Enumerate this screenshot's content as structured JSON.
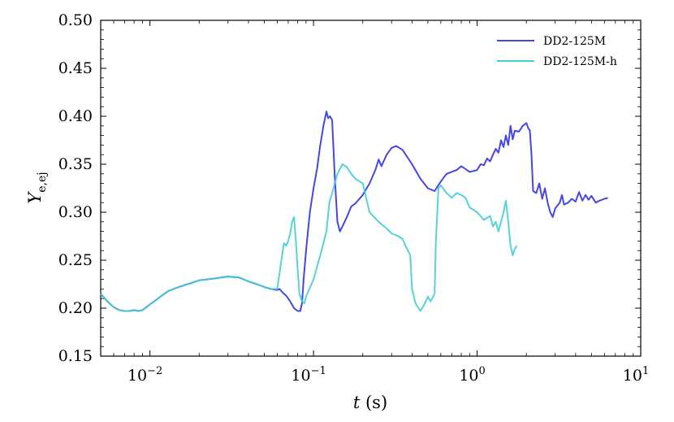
{
  "chart_data": {
    "type": "line",
    "xlabel": "t (s)",
    "ylabel": "Y_e,ej",
    "xscale": "log",
    "xlim": [
      0.005,
      10
    ],
    "ylim": [
      0.15,
      0.5
    ],
    "x_ticks": [
      {
        "value": 0.01,
        "base": "10",
        "exp": "−2"
      },
      {
        "value": 0.1,
        "base": "10",
        "exp": "−1"
      },
      {
        "value": 1,
        "base": "10",
        "exp": "0"
      },
      {
        "value": 10,
        "base": "10",
        "exp": "1"
      }
    ],
    "y_ticks": [
      "0.15",
      "0.20",
      "0.25",
      "0.30",
      "0.35",
      "0.40",
      "0.45",
      "0.50"
    ],
    "grid": false,
    "legend_position": "top-right",
    "series": [
      {
        "name": "DD2-125M",
        "color": "#4646e6",
        "points": [
          [
            0.005,
            0.215
          ],
          [
            0.0055,
            0.207
          ],
          [
            0.006,
            0.201
          ],
          [
            0.0065,
            0.198
          ],
          [
            0.007,
            0.197
          ],
          [
            0.0075,
            0.197
          ],
          [
            0.008,
            0.198
          ],
          [
            0.0085,
            0.197
          ],
          [
            0.009,
            0.198
          ],
          [
            0.0095,
            0.201
          ],
          [
            0.01,
            0.204
          ],
          [
            0.011,
            0.209
          ],
          [
            0.012,
            0.214
          ],
          [
            0.013,
            0.218
          ],
          [
            0.015,
            0.222
          ],
          [
            0.017,
            0.225
          ],
          [
            0.02,
            0.229
          ],
          [
            0.025,
            0.231
          ],
          [
            0.03,
            0.233
          ],
          [
            0.035,
            0.232
          ],
          [
            0.04,
            0.228
          ],
          [
            0.045,
            0.225
          ],
          [
            0.05,
            0.222
          ],
          [
            0.055,
            0.22
          ],
          [
            0.06,
            0.219
          ],
          [
            0.062,
            0.22
          ],
          [
            0.065,
            0.216
          ],
          [
            0.068,
            0.213
          ],
          [
            0.072,
            0.207
          ],
          [
            0.076,
            0.2
          ],
          [
            0.08,
            0.197
          ],
          [
            0.083,
            0.197
          ],
          [
            0.085,
            0.205
          ],
          [
            0.087,
            0.23
          ],
          [
            0.09,
            0.26
          ],
          [
            0.095,
            0.3
          ],
          [
            0.1,
            0.325
          ],
          [
            0.105,
            0.345
          ],
          [
            0.11,
            0.37
          ],
          [
            0.115,
            0.39
          ],
          [
            0.12,
            0.405
          ],
          [
            0.123,
            0.398
          ],
          [
            0.126,
            0.4
          ],
          [
            0.13,
            0.396
          ],
          [
            0.135,
            0.335
          ],
          [
            0.14,
            0.29
          ],
          [
            0.145,
            0.28
          ],
          [
            0.15,
            0.285
          ],
          [
            0.16,
            0.295
          ],
          [
            0.17,
            0.306
          ],
          [
            0.18,
            0.309
          ],
          [
            0.2,
            0.318
          ],
          [
            0.22,
            0.33
          ],
          [
            0.24,
            0.345
          ],
          [
            0.25,
            0.355
          ],
          [
            0.26,
            0.348
          ],
          [
            0.28,
            0.36
          ],
          [
            0.3,
            0.367
          ],
          [
            0.32,
            0.369
          ],
          [
            0.35,
            0.365
          ],
          [
            0.4,
            0.35
          ],
          [
            0.45,
            0.335
          ],
          [
            0.5,
            0.325
          ],
          [
            0.55,
            0.322
          ],
          [
            0.6,
            0.332
          ],
          [
            0.65,
            0.34
          ],
          [
            0.7,
            0.342
          ],
          [
            0.75,
            0.344
          ],
          [
            0.8,
            0.348
          ],
          [
            0.85,
            0.345
          ],
          [
            0.9,
            0.342
          ],
          [
            0.95,
            0.343
          ],
          [
            1.0,
            0.344
          ],
          [
            1.05,
            0.35
          ],
          [
            1.1,
            0.349
          ],
          [
            1.15,
            0.356
          ],
          [
            1.2,
            0.353
          ],
          [
            1.25,
            0.36
          ],
          [
            1.3,
            0.366
          ],
          [
            1.35,
            0.362
          ],
          [
            1.4,
            0.375
          ],
          [
            1.45,
            0.368
          ],
          [
            1.5,
            0.38
          ],
          [
            1.55,
            0.37
          ],
          [
            1.6,
            0.39
          ],
          [
            1.65,
            0.376
          ],
          [
            1.7,
            0.385
          ],
          [
            1.8,
            0.384
          ],
          [
            1.9,
            0.39
          ],
          [
            2.0,
            0.393
          ],
          [
            2.05,
            0.388
          ],
          [
            2.1,
            0.385
          ],
          [
            2.15,
            0.36
          ],
          [
            2.2,
            0.322
          ],
          [
            2.3,
            0.32
          ],
          [
            2.4,
            0.33
          ],
          [
            2.5,
            0.314
          ],
          [
            2.6,
            0.325
          ],
          [
            2.7,
            0.31
          ],
          [
            2.8,
            0.3
          ],
          [
            2.9,
            0.295
          ],
          [
            3.0,
            0.304
          ],
          [
            3.2,
            0.31
          ],
          [
            3.3,
            0.318
          ],
          [
            3.4,
            0.308
          ],
          [
            3.6,
            0.31
          ],
          [
            3.8,
            0.314
          ],
          [
            4.0,
            0.311
          ],
          [
            4.2,
            0.321
          ],
          [
            4.4,
            0.312
          ],
          [
            4.6,
            0.318
          ],
          [
            4.8,
            0.313
          ],
          [
            5.0,
            0.317
          ],
          [
            5.3,
            0.31
          ],
          [
            5.6,
            0.312
          ],
          [
            6.0,
            0.314
          ],
          [
            6.3,
            0.315
          ]
        ]
      },
      {
        "name": "DD2-125M-h",
        "color": "#45cdd0",
        "points": [
          [
            0.005,
            0.215
          ],
          [
            0.0055,
            0.207
          ],
          [
            0.006,
            0.201
          ],
          [
            0.0065,
            0.198
          ],
          [
            0.007,
            0.197
          ],
          [
            0.0075,
            0.197
          ],
          [
            0.008,
            0.198
          ],
          [
            0.0085,
            0.197
          ],
          [
            0.009,
            0.198
          ],
          [
            0.0095,
            0.201
          ],
          [
            0.01,
            0.204
          ],
          [
            0.011,
            0.209
          ],
          [
            0.012,
            0.214
          ],
          [
            0.013,
            0.218
          ],
          [
            0.015,
            0.222
          ],
          [
            0.017,
            0.225
          ],
          [
            0.02,
            0.229
          ],
          [
            0.025,
            0.231
          ],
          [
            0.03,
            0.233
          ],
          [
            0.035,
            0.232
          ],
          [
            0.04,
            0.228
          ],
          [
            0.045,
            0.225
          ],
          [
            0.05,
            0.222
          ],
          [
            0.055,
            0.22
          ],
          [
            0.06,
            0.22
          ],
          [
            0.063,
            0.245
          ],
          [
            0.066,
            0.268
          ],
          [
            0.068,
            0.265
          ],
          [
            0.07,
            0.27
          ],
          [
            0.072,
            0.278
          ],
          [
            0.074,
            0.29
          ],
          [
            0.076,
            0.295
          ],
          [
            0.078,
            0.27
          ],
          [
            0.08,
            0.24
          ],
          [
            0.082,
            0.215
          ],
          [
            0.085,
            0.207
          ],
          [
            0.088,
            0.205
          ],
          [
            0.09,
            0.212
          ],
          [
            0.1,
            0.23
          ],
          [
            0.11,
            0.255
          ],
          [
            0.12,
            0.28
          ],
          [
            0.125,
            0.31
          ],
          [
            0.13,
            0.32
          ],
          [
            0.14,
            0.34
          ],
          [
            0.15,
            0.35
          ],
          [
            0.16,
            0.347
          ],
          [
            0.17,
            0.34
          ],
          [
            0.18,
            0.335
          ],
          [
            0.2,
            0.33
          ],
          [
            0.22,
            0.3
          ],
          [
            0.25,
            0.29
          ],
          [
            0.28,
            0.283
          ],
          [
            0.3,
            0.278
          ],
          [
            0.33,
            0.275
          ],
          [
            0.35,
            0.272
          ],
          [
            0.37,
            0.263
          ],
          [
            0.39,
            0.255
          ],
          [
            0.4,
            0.22
          ],
          [
            0.42,
            0.205
          ],
          [
            0.45,
            0.197
          ],
          [
            0.48,
            0.205
          ],
          [
            0.5,
            0.212
          ],
          [
            0.52,
            0.207
          ],
          [
            0.55,
            0.215
          ],
          [
            0.56,
            0.27
          ],
          [
            0.58,
            0.325
          ],
          [
            0.6,
            0.328
          ],
          [
            0.65,
            0.32
          ],
          [
            0.7,
            0.315
          ],
          [
            0.75,
            0.32
          ],
          [
            0.8,
            0.318
          ],
          [
            0.85,
            0.315
          ],
          [
            0.9,
            0.305
          ],
          [
            1.0,
            0.3
          ],
          [
            1.1,
            0.292
          ],
          [
            1.2,
            0.296
          ],
          [
            1.25,
            0.285
          ],
          [
            1.3,
            0.29
          ],
          [
            1.35,
            0.28
          ],
          [
            1.4,
            0.29
          ],
          [
            1.45,
            0.3
          ],
          [
            1.5,
            0.312
          ],
          [
            1.55,
            0.29
          ],
          [
            1.6,
            0.265
          ],
          [
            1.65,
            0.255
          ],
          [
            1.7,
            0.262
          ],
          [
            1.75,
            0.265
          ]
        ]
      }
    ]
  }
}
